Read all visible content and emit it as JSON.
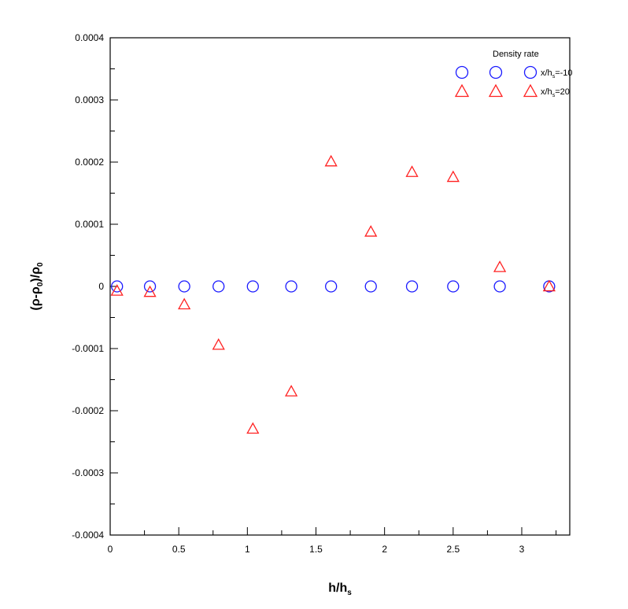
{
  "chart_data": {
    "type": "scatter",
    "xlabel": "h/h",
    "xlabel_sub": "s",
    "ylabel": "(ρ-ρ",
    "ylabel_sub1": "0",
    "ylabel_mid": ")/ρ",
    "ylabel_sub2": "0",
    "xlim": [
      0,
      3.35
    ],
    "ylim": [
      -0.0004,
      0.0004
    ],
    "x_major_ticks": [
      0,
      0.5,
      1,
      1.5,
      2,
      2.5,
      3
    ],
    "x_tick_labels": [
      "0",
      "0.5",
      "1",
      "1.5",
      "2",
      "2.5",
      "3"
    ],
    "x_minor_step": 0.25,
    "y_major_ticks": [
      -0.0004,
      -0.0003,
      -0.0002,
      -0.0001,
      0,
      0.0001,
      0.0002,
      0.0003,
      0.0004
    ],
    "y_tick_labels": [
      "-0.0004",
      "-0.0003",
      "-0.0002",
      "-0.0001",
      "0",
      "0.0001",
      "0.0002",
      "0.0003",
      "0.0004"
    ],
    "y_minor_step": 5e-05,
    "grid": false,
    "legend": {
      "title": "Density rate",
      "placement": "top-right",
      "entries": [
        {
          "label": "x/h",
          "label_sub": "s",
          "label_suffix": "=-10",
          "marker": "circle",
          "color": "#1a1aff"
        },
        {
          "label": "x/h",
          "label_sub": "s",
          "label_suffix": "=20",
          "marker": "triangle",
          "color": "#ff2020"
        }
      ]
    },
    "series": [
      {
        "marker": "circle",
        "color": "#1a1aff",
        "x": [
          0.05,
          0.29,
          0.54,
          0.79,
          1.04,
          1.32,
          1.61,
          1.9,
          2.2,
          2.5,
          2.84,
          3.2
        ],
        "y": [
          0,
          0,
          0,
          0,
          0,
          0,
          0,
          0,
          0,
          0,
          0,
          0
        ]
      },
      {
        "marker": "triangle",
        "color": "#ff2020",
        "x": [
          0.05,
          0.29,
          0.54,
          0.79,
          1.04,
          1.32,
          1.61,
          1.9,
          2.2,
          2.5,
          2.84,
          3.2
        ],
        "y": [
          -8e-06,
          -1e-05,
          -3e-05,
          -9.5e-05,
          -0.00023,
          -0.00017,
          0.0002,
          8.7e-05,
          0.000183,
          0.000175,
          3e-05,
          -1e-06
        ]
      }
    ]
  }
}
